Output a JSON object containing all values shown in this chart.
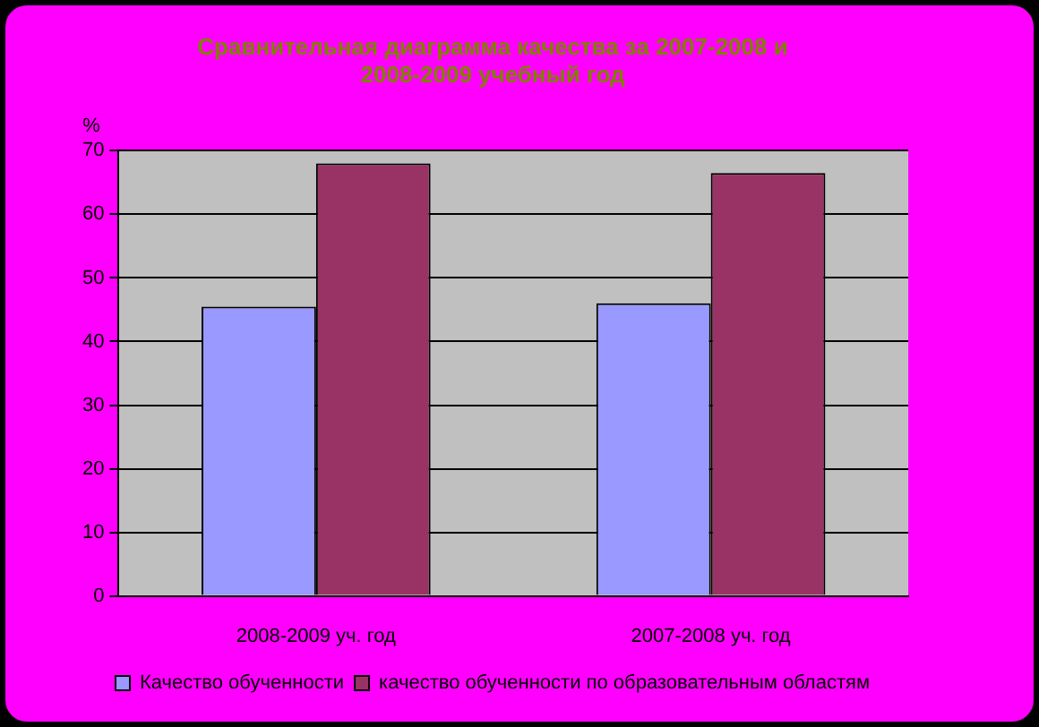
{
  "chart_data": {
    "type": "bar",
    "title": "Сравнительная диаграмма качества за 2007-2008 и 2008-2009 учебный год",
    "ylabel": "%",
    "categories": [
      "2008-2009 уч. год",
      "2007-2008 уч. год"
    ],
    "series": [
      {
        "name": "Качество обученности",
        "color": "#9999ff",
        "values": [
          45.5,
          46
        ]
      },
      {
        "name": "качество обученности по образовательным областям",
        "color": "#993366",
        "values": [
          68,
          66.5
        ]
      }
    ],
    "ylim": [
      0,
      70
    ],
    "yticks": [
      0,
      10,
      20,
      30,
      40,
      50,
      60,
      70
    ],
    "grid": "y",
    "legend": "bottom"
  }
}
